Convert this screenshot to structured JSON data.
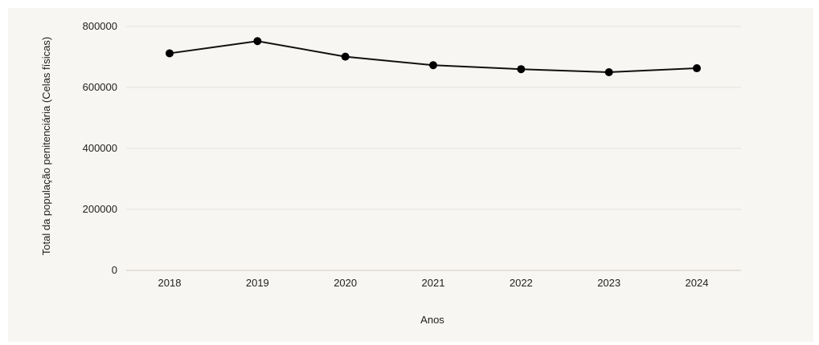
{
  "chart_data": {
    "type": "line",
    "title": "",
    "xlabel": "Anos",
    "ylabel": "Total da população penitenciária (Celas físicas)",
    "x": [
      "2018",
      "2019",
      "2020",
      "2021",
      "2022",
      "2023",
      "2024"
    ],
    "series": [
      {
        "values": [
          712000,
          752000,
          701000,
          673000,
          660000,
          650000,
          663000
        ]
      }
    ],
    "ylim": [
      0,
      800000
    ],
    "yticks": [
      "0",
      "200000",
      "400000",
      "600000",
      "800000"
    ],
    "grid": true,
    "legend": "none",
    "colors": {
      "background": "#f8f6f2",
      "line": "#111111",
      "point": "#000000",
      "grid": "#e4e1dc"
    }
  }
}
